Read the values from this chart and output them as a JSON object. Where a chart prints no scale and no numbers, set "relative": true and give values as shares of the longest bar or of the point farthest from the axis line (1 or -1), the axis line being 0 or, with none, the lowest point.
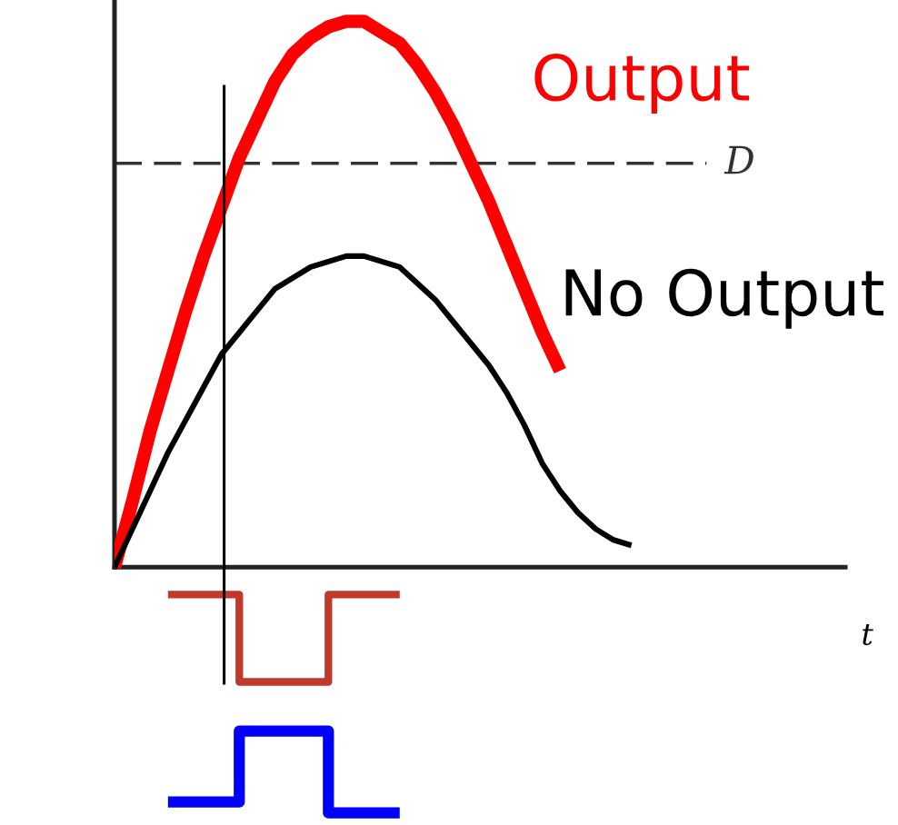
{
  "chart_data": {
    "type": "line",
    "relative": true,
    "xlabel": "t",
    "categories": [
      null,
      null,
      null,
      null,
      null,
      null,
      null,
      null,
      null,
      null,
      null,
      null,
      null,
      null,
      null,
      null,
      null,
      null,
      null,
      null,
      null,
      null,
      null,
      null,
      null,
      null,
      null,
      null,
      null,
      null,
      null,
      null,
      null,
      null,
      null,
      null,
      null,
      null,
      null,
      null,
      null,
      null
    ],
    "series": [
      {
        "name": "Output",
        "color": "#ff0000",
        "values": [
          0,
          0.12,
          0.25,
          0.36,
          0.47,
          0.57,
          0.66,
          0.75,
          0.82,
          0.89,
          0.94,
          0.97,
          0.99,
          1,
          1,
          0.98,
          0.96,
          0.92,
          0.87,
          0.81,
          0.74,
          0.67,
          0.59,
          0.51,
          0.43,
          0.36,
          null,
          null,
          null,
          null,
          null,
          null,
          null,
          null,
          null,
          null,
          null,
          null,
          null,
          null,
          null,
          null
        ]
      },
      {
        "name": "No Output",
        "color": "#000000",
        "values": [
          0,
          0.07,
          0.14,
          0.21,
          0.27,
          0.33,
          0.39,
          0.43,
          0.47,
          0.51,
          0.53,
          0.55,
          0.56,
          0.57,
          0.57,
          0.56,
          0.55,
          0.52,
          0.49,
          0.45,
          0.41,
          0.37,
          0.32,
          0.26,
          0.19,
          0.14,
          0.1,
          0.07,
          0.05,
          0.04,
          null,
          null,
          null,
          null,
          null,
          null,
          null,
          null,
          null,
          null,
          null,
          null
        ]
      },
      {
        "type": "step",
        "color": "#c0392b",
        "values": [
          null,
          null,
          null,
          -0.05,
          -0.05,
          -0.05,
          -0.05,
          -0.21,
          -0.21,
          -0.21,
          -0.21,
          -0.21,
          -0.05,
          -0.05,
          -0.05,
          -0.05,
          -0.05,
          null,
          null,
          null,
          null,
          null,
          null,
          null,
          null,
          null,
          null,
          null,
          null,
          null,
          null,
          null,
          null,
          null,
          null,
          null,
          null,
          null,
          null,
          null,
          null,
          null
        ]
      },
      {
        "type": "step",
        "color": "#0000ff",
        "values": [
          null,
          null,
          null,
          -0.43,
          -0.43,
          -0.43,
          -0.43,
          -0.3,
          -0.3,
          -0.3,
          -0.3,
          -0.3,
          -0.45,
          -0.45,
          -0.45,
          -0.45,
          -0.45,
          null,
          null,
          null,
          null,
          null,
          null,
          null,
          null,
          null,
          null,
          null,
          null,
          null,
          null,
          null,
          null,
          null,
          null,
          null,
          null,
          null,
          null,
          null,
          null,
          null
        ]
      }
    ],
    "ref_lines": [
      {
        "axis": "y",
        "value": 0.74,
        "label": "D",
        "line_style": "dashed",
        "color": "#333333"
      }
    ],
    "tick_labels": false
  }
}
